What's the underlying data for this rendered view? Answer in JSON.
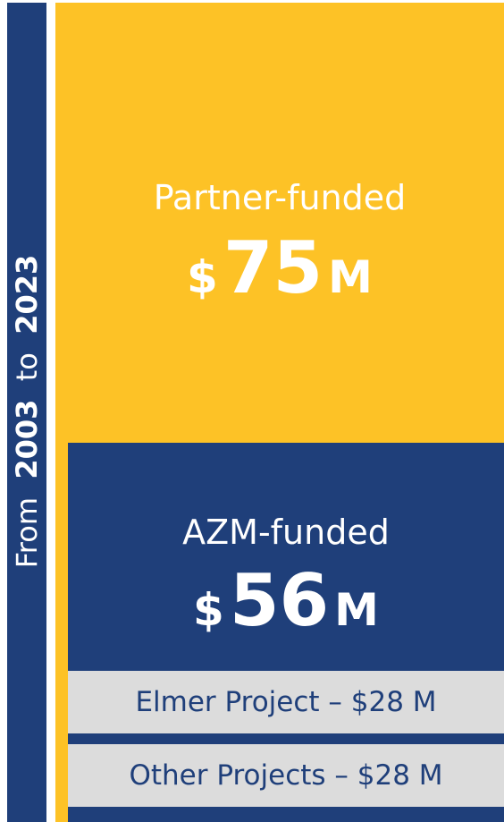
{
  "side_label": {
    "from": "From",
    "start": "2003",
    "to": "to",
    "end": "2023"
  },
  "partner": {
    "label": "Partner-funded",
    "currency": "$",
    "amount": 75,
    "unit": "M"
  },
  "azm": {
    "label": "AZM-funded",
    "currency": "$",
    "amount": 56,
    "unit": "M"
  },
  "rows": [
    "Elmer Project – $28 M",
    "Other Projects – $28 M"
  ]
}
